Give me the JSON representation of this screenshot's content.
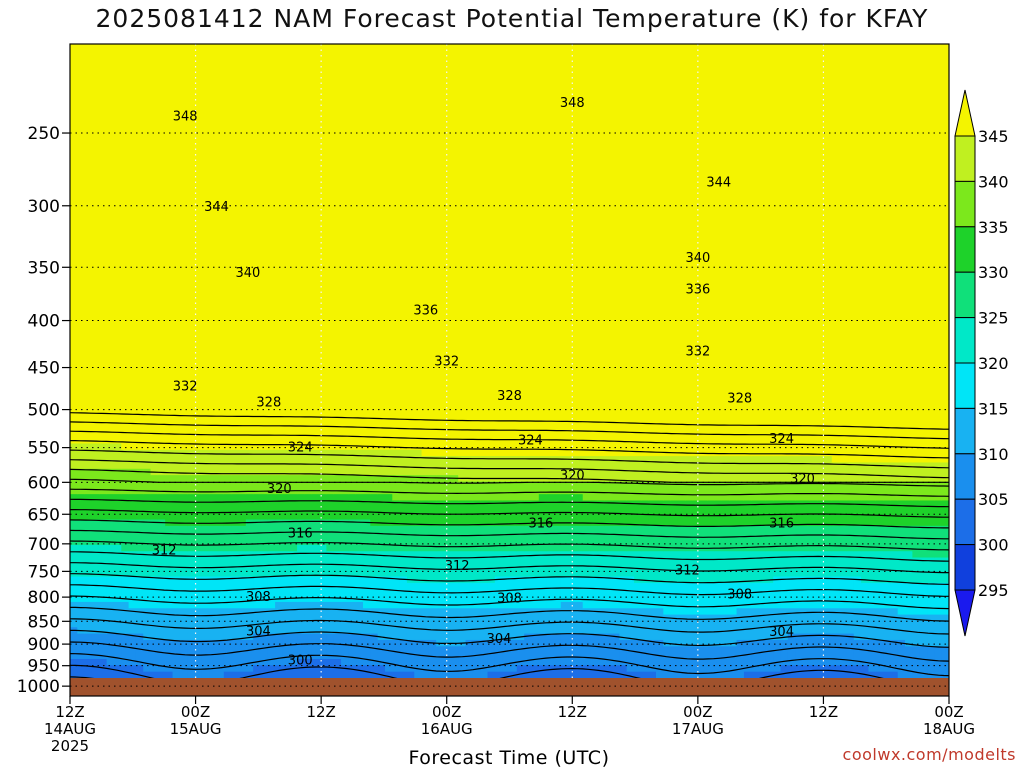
{
  "title": "2025081412 NAM Forecast Potential Temperature (K) for KFAY",
  "credit": "coolwx.com/modelts",
  "chart_data": {
    "type": "heatmap",
    "title": "2025081412 NAM Forecast Potential Temperature (K) for KFAY",
    "xlabel": "Forecast Time (UTC)",
    "ylabel": "",
    "x_ticks": [
      {
        "hours": 0,
        "lines": [
          "12Z",
          "14AUG",
          "2025"
        ]
      },
      {
        "hours": 12,
        "lines": [
          "00Z",
          "15AUG"
        ]
      },
      {
        "hours": 24,
        "lines": [
          "12Z"
        ]
      },
      {
        "hours": 36,
        "lines": [
          "00Z",
          "16AUG"
        ]
      },
      {
        "hours": 48,
        "lines": [
          "12Z"
        ]
      },
      {
        "hours": 60,
        "lines": [
          "00Z",
          "17AUG"
        ]
      },
      {
        "hours": 72,
        "lines": [
          "12Z"
        ]
      },
      {
        "hours": 84,
        "lines": [
          "00Z",
          "18AUG"
        ]
      }
    ],
    "xlim": [
      0,
      84
    ],
    "y_ticks": [
      250,
      300,
      350,
      400,
      450,
      500,
      550,
      600,
      650,
      700,
      750,
      800,
      850,
      900,
      950,
      1000
    ],
    "ylim": [
      1025,
      200
    ],
    "y_scale": "log",
    "colorbar": {
      "levels": [
        295,
        300,
        305,
        310,
        315,
        320,
        325,
        330,
        335,
        340,
        345
      ],
      "colors": [
        "#1a1aee",
        "#1040dd",
        "#1c6ee8",
        "#1a8fee",
        "#18b2f2",
        "#00e5f7",
        "#00e8c8",
        "#10e07a",
        "#1ed22a",
        "#7ce81c",
        "#c0f020",
        "#f4f400"
      ]
    },
    "contour_labels": [
      {
        "v": "348",
        "x": 48,
        "p": 232
      },
      {
        "v": "348",
        "x": 11,
        "p": 240
      },
      {
        "v": "344",
        "x": 62,
        "p": 283
      },
      {
        "v": "344",
        "x": 14,
        "p": 301
      },
      {
        "v": "340",
        "x": 60,
        "p": 342
      },
      {
        "v": "340",
        "x": 17,
        "p": 355
      },
      {
        "v": "336",
        "x": 60,
        "p": 370
      },
      {
        "v": "336",
        "x": 34,
        "p": 390
      },
      {
        "v": "332",
        "x": 60,
        "p": 432
      },
      {
        "v": "332",
        "x": 36,
        "p": 443
      },
      {
        "v": "332",
        "x": 11,
        "p": 472
      },
      {
        "v": "328",
        "x": 42,
        "p": 483
      },
      {
        "v": "328",
        "x": 64,
        "p": 486
      },
      {
        "v": "328",
        "x": 19,
        "p": 491
      },
      {
        "v": "324",
        "x": 44,
        "p": 540
      },
      {
        "v": "324",
        "x": 68,
        "p": 538
      },
      {
        "v": "324",
        "x": 22,
        "p": 550
      },
      {
        "v": "320",
        "x": 48,
        "p": 590
      },
      {
        "v": "320",
        "x": 70,
        "p": 595
      },
      {
        "v": "320",
        "x": 20,
        "p": 610
      },
      {
        "v": "316",
        "x": 45,
        "p": 665
      },
      {
        "v": "316",
        "x": 68,
        "p": 665
      },
      {
        "v": "316",
        "x": 22,
        "p": 682
      },
      {
        "v": "312",
        "x": 9,
        "p": 712
      },
      {
        "v": "312",
        "x": 37,
        "p": 740
      },
      {
        "v": "312",
        "x": 59,
        "p": 748
      },
      {
        "v": "308",
        "x": 18,
        "p": 800
      },
      {
        "v": "308",
        "x": 42,
        "p": 803
      },
      {
        "v": "308",
        "x": 64,
        "p": 795
      },
      {
        "v": "304",
        "x": 18,
        "p": 872
      },
      {
        "v": "304",
        "x": 41,
        "p": 888
      },
      {
        "v": "304",
        "x": 68,
        "p": 873
      },
      {
        "v": "300",
        "x": 22,
        "p": 938
      }
    ],
    "grid": true
  }
}
